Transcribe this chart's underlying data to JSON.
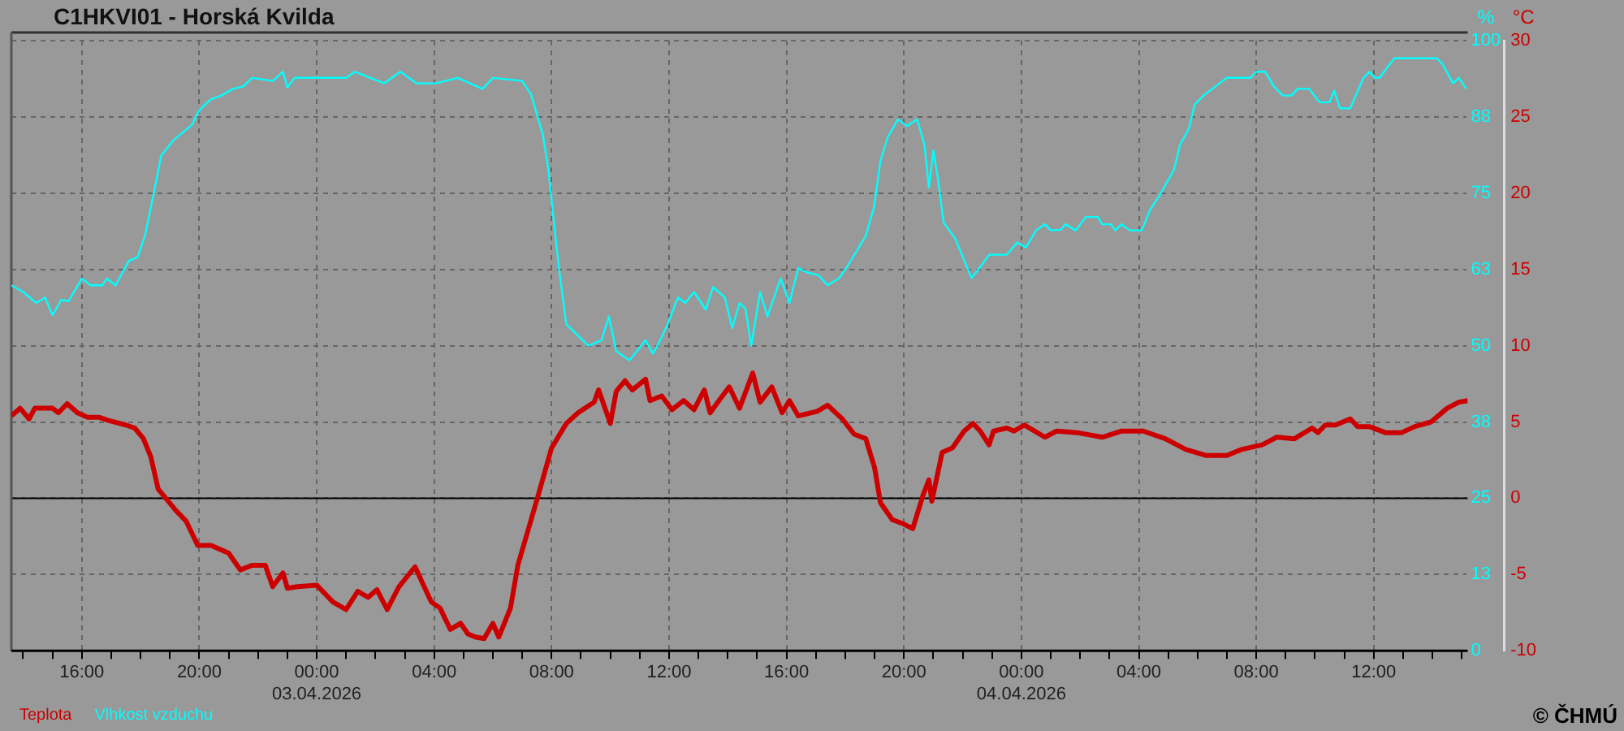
{
  "chart_data": {
    "type": "line",
    "title": "C1HKVI01 - Horská Kvilda",
    "ylabel": "°C",
    "y2label": "%",
    "annotations": [
      "© ČHMÚ"
    ],
    "xlim": [
      "2026-04-02T13:36",
      "2026-04-04T15:12"
    ],
    "xticks": [
      {
        "value": "2026-04-02T14:00",
        "label": null
      },
      {
        "value": "2026-04-02T15:00",
        "label": null
      },
      {
        "value": "2026-04-02T16:00",
        "label": "16:00"
      },
      {
        "value": "2026-04-02T17:00",
        "label": null
      },
      {
        "value": "2026-04-02T18:00",
        "label": null
      },
      {
        "value": "2026-04-02T19:00",
        "label": null
      },
      {
        "value": "2026-04-02T20:00",
        "label": "20:00"
      },
      {
        "value": "2026-04-02T21:00",
        "label": null
      },
      {
        "value": "2026-04-02T22:00",
        "label": null
      },
      {
        "value": "2026-04-02T23:00",
        "label": null
      },
      {
        "value": "2026-04-03T00:00",
        "label": "00:00\n03.04.2026"
      },
      {
        "value": "2026-04-03T01:00",
        "label": null
      },
      {
        "value": "2026-04-03T02:00",
        "label": null
      },
      {
        "value": "2026-04-03T03:00",
        "label": null
      },
      {
        "value": "2026-04-03T04:00",
        "label": "04:00"
      },
      {
        "value": "2026-04-03T05:00",
        "label": null
      },
      {
        "value": "2026-04-03T06:00",
        "label": null
      },
      {
        "value": "2026-04-03T07:00",
        "label": null
      },
      {
        "value": "2026-04-03T08:00",
        "label": "08:00"
      },
      {
        "value": "2026-04-03T09:00",
        "label": null
      },
      {
        "value": "2026-04-03T10:00",
        "label": null
      },
      {
        "value": "2026-04-03T11:00",
        "label": null
      },
      {
        "value": "2026-04-03T12:00",
        "label": "12:00"
      },
      {
        "value": "2026-04-03T13:00",
        "label": null
      },
      {
        "value": "2026-04-03T14:00",
        "label": null
      },
      {
        "value": "2026-04-03T15:00",
        "label": null
      },
      {
        "value": "2026-04-03T16:00",
        "label": "16:00"
      },
      {
        "value": "2026-04-03T17:00",
        "label": null
      },
      {
        "value": "2026-04-03T18:00",
        "label": null
      },
      {
        "value": "2026-04-03T19:00",
        "label": null
      },
      {
        "value": "2026-04-03T20:00",
        "label": "20:00"
      },
      {
        "value": "2026-04-03T21:00",
        "label": null
      },
      {
        "value": "2026-04-03T22:00",
        "label": null
      },
      {
        "value": "2026-04-03T23:00",
        "label": null
      },
      {
        "value": "2026-04-04T00:00",
        "label": "00:00\n04.04.2026"
      },
      {
        "value": "2026-04-04T01:00",
        "label": null
      },
      {
        "value": "2026-04-04T02:00",
        "label": null
      },
      {
        "value": "2026-04-04T03:00",
        "label": null
      },
      {
        "value": "2026-04-04T04:00",
        "label": "04:00"
      },
      {
        "value": "2026-04-04T05:00",
        "label": null
      },
      {
        "value": "2026-04-04T06:00",
        "label": null
      },
      {
        "value": "2026-04-04T07:00",
        "label": null
      },
      {
        "value": "2026-04-04T08:00",
        "label": "08:00"
      },
      {
        "value": "2026-04-04T09:00",
        "label": null
      },
      {
        "value": "2026-04-04T10:00",
        "label": null
      },
      {
        "value": "2026-04-04T11:00",
        "label": null
      },
      {
        "value": "2026-04-04T12:00",
        "label": "12:00"
      },
      {
        "value": "2026-04-04T13:00",
        "label": null
      },
      {
        "value": "2026-04-04T14:00",
        "label": null
      },
      {
        "value": "2026-04-04T15:00",
        "label": null
      }
    ],
    "ylim": [
      -10,
      30
    ],
    "yticks": [
      -10,
      -5,
      0,
      5,
      10,
      15,
      20,
      25,
      30
    ],
    "y2lim": [
      0,
      100
    ],
    "y2ticks": [
      0,
      {
        "value": 12.5,
        "label": "13"
      },
      25,
      {
        "value": 37.5,
        "label": "38"
      },
      50,
      {
        "value": 62.5,
        "label": "63"
      },
      75,
      {
        "value": 87.5,
        "label": "88"
      },
      100
    ],
    "grid": true,
    "legend": "bottom left",
    "marker": "none",
    "ref_lines": [
      {
        "axis": "y",
        "value": 0,
        "color": "#000000"
      }
    ],
    "series": [
      {
        "name": "Teplota",
        "color": "#cc0000",
        "x": [
          "2026-04-02T13:36",
          "2026-04-02T13:54",
          "2026-04-02T14:12",
          "2026-04-02T14:24",
          "2026-04-02T15:00",
          "2026-04-02T15:12",
          "2026-04-02T15:30",
          "2026-04-02T15:51",
          "2026-04-02T16:12",
          "2026-04-02T16:36",
          "2026-04-02T16:54",
          "2026-04-02T17:30",
          "2026-04-02T17:48",
          "2026-04-02T18:06",
          "2026-04-02T18:21",
          "2026-04-02T18:36",
          "2026-04-02T19:12",
          "2026-04-02T19:33",
          "2026-04-02T19:57",
          "2026-04-02T20:24",
          "2026-04-02T21:00",
          "2026-04-02T21:24",
          "2026-04-02T21:48",
          "2026-04-02T22:15",
          "2026-04-02T22:30",
          "2026-04-02T22:51",
          "2026-04-02T23:00",
          "2026-04-02T23:21",
          "2026-04-03T00:00",
          "2026-04-03T00:33",
          "2026-04-03T01:00",
          "2026-04-03T01:24",
          "2026-04-03T01:45",
          "2026-04-03T02:03",
          "2026-04-03T02:24",
          "2026-04-03T02:48",
          "2026-04-03T03:21",
          "2026-04-03T03:54",
          "2026-04-03T04:12",
          "2026-04-03T04:33",
          "2026-04-03T04:54",
          "2026-04-03T05:09",
          "2026-04-03T05:24",
          "2026-04-03T05:42",
          "2026-04-03T06:00",
          "2026-04-03T06:12",
          "2026-04-03T06:36",
          "2026-04-03T06:51",
          "2026-04-03T07:30",
          "2026-04-03T08:00",
          "2026-04-03T08:30",
          "2026-04-03T08:54",
          "2026-04-03T09:27",
          "2026-04-03T09:36",
          "2026-04-03T10:00",
          "2026-04-03T10:12",
          "2026-04-03T10:30",
          "2026-04-03T10:45",
          "2026-04-03T11:12",
          "2026-04-03T11:21",
          "2026-04-03T11:45",
          "2026-04-03T12:06",
          "2026-04-03T12:30",
          "2026-04-03T12:51",
          "2026-04-03T13:12",
          "2026-04-03T13:24",
          "2026-04-03T13:42",
          "2026-04-03T14:03",
          "2026-04-03T14:24",
          "2026-04-03T14:51",
          "2026-04-03T15:06",
          "2026-04-03T15:30",
          "2026-04-03T15:51",
          "2026-04-03T16:06",
          "2026-04-03T16:24",
          "2026-04-03T17:03",
          "2026-04-03T17:24",
          "2026-04-03T17:54",
          "2026-04-03T18:18",
          "2026-04-03T18:42",
          "2026-04-03T19:00",
          "2026-04-03T19:12",
          "2026-04-03T19:36",
          "2026-04-03T20:00",
          "2026-04-03T20:18",
          "2026-04-03T20:39",
          "2026-04-03T20:51",
          "2026-04-03T20:57",
          "2026-04-03T21:18",
          "2026-04-03T21:39",
          "2026-04-03T22:03",
          "2026-04-03T22:21",
          "2026-04-03T22:36",
          "2026-04-03T22:54",
          "2026-04-03T23:03",
          "2026-04-03T23:30",
          "2026-04-03T23:45",
          "2026-04-04T00:06",
          "2026-04-04T00:48",
          "2026-04-04T01:12",
          "2026-04-04T01:54",
          "2026-04-04T02:45",
          "2026-04-04T03:24",
          "2026-04-04T04:09",
          "2026-04-04T04:54",
          "2026-04-04T05:36",
          "2026-04-04T06:18",
          "2026-04-04T07:00",
          "2026-04-04T07:30",
          "2026-04-04T08:12",
          "2026-04-04T08:42",
          "2026-04-04T09:18",
          "2026-04-04T09:54",
          "2026-04-04T10:06",
          "2026-04-04T10:21",
          "2026-04-04T10:42",
          "2026-04-04T11:12",
          "2026-04-04T11:27",
          "2026-04-04T11:51",
          "2026-04-04T12:24",
          "2026-04-04T12:57",
          "2026-04-04T13:24",
          "2026-04-04T13:57",
          "2026-04-04T14:30",
          "2026-04-04T14:54",
          "2026-04-04T15:12"
        ],
        "values": [
          5.4,
          5.9,
          5.2,
          5.9,
          5.9,
          5.6,
          6.2,
          5.6,
          5.3,
          5.3,
          5.1,
          4.8,
          4.6,
          3.9,
          2.7,
          0.6,
          -0.8,
          -1.5,
          -3.1,
          -3.1,
          -3.6,
          -4.7,
          -4.4,
          -4.4,
          -5.8,
          -4.9,
          -5.9,
          -5.8,
          -5.7,
          -6.8,
          -7.3,
          -6.1,
          -6.5,
          -6.0,
          -7.3,
          -5.8,
          -4.5,
          -6.8,
          -7.2,
          -8.6,
          -8.2,
          -8.9,
          -9.1,
          -9.2,
          -8.2,
          -9.1,
          -7.2,
          -4.4,
          -0.1,
          3.3,
          4.9,
          5.6,
          6.3,
          7.1,
          4.9,
          7.0,
          7.7,
          7.1,
          7.8,
          6.4,
          6.7,
          5.8,
          6.4,
          5.8,
          7.1,
          5.6,
          6.4,
          7.3,
          5.9,
          8.2,
          6.3,
          7.3,
          5.6,
          6.4,
          5.4,
          5.7,
          6.1,
          5.2,
          4.2,
          3.9,
          2.0,
          -0.3,
          -1.4,
          -1.7,
          -2.0,
          0.2,
          1.2,
          -0.2,
          3.0,
          3.3,
          4.4,
          4.9,
          4.4,
          3.5,
          4.4,
          4.6,
          4.4,
          4.8,
          4.0,
          4.4,
          4.3,
          4.0,
          4.4,
          4.4,
          3.9,
          3.2,
          2.8,
          2.8,
          3.2,
          3.5,
          4.0,
          3.9,
          4.6,
          4.3,
          4.8,
          4.8,
          5.2,
          4.7,
          4.7,
          4.3,
          4.3,
          4.7,
          5.0,
          5.9,
          6.3,
          6.4
        ]
      },
      {
        "name": "Vlhkost vzduchu",
        "color": "#00ffff",
        "axis": "y2",
        "x": [
          "2026-04-02T13:36",
          "2026-04-02T14:00",
          "2026-04-02T14:27",
          "2026-04-02T14:45",
          "2026-04-02T15:00",
          "2026-04-02T15:18",
          "2026-04-02T15:33",
          "2026-04-02T16:00",
          "2026-04-02T16:18",
          "2026-04-02T16:42",
          "2026-04-02T16:51",
          "2026-04-02T17:09",
          "2026-04-02T17:36",
          "2026-04-02T17:54",
          "2026-04-02T18:09",
          "2026-04-02T18:27",
          "2026-04-02T18:42",
          "2026-04-02T19:06",
          "2026-04-02T19:45",
          "2026-04-02T20:00",
          "2026-04-02T20:24",
          "2026-04-02T20:45",
          "2026-04-02T21:09",
          "2026-04-02T21:30",
          "2026-04-02T21:48",
          "2026-04-02T22:30",
          "2026-04-02T22:51",
          "2026-04-02T23:00",
          "2026-04-02T23:15",
          "2026-04-03T01:00",
          "2026-04-03T01:18",
          "2026-04-03T02:18",
          "2026-04-03T02:51",
          "2026-04-03T03:24",
          "2026-04-03T04:03",
          "2026-04-03T04:48",
          "2026-04-03T05:39",
          "2026-04-03T06:00",
          "2026-04-03T07:00",
          "2026-04-03T07:18",
          "2026-04-03T07:42",
          "2026-04-03T07:54",
          "2026-04-03T08:03",
          "2026-04-03T08:15",
          "2026-04-03T08:30",
          "2026-04-03T08:42",
          "2026-04-03T09:15",
          "2026-04-03T09:42",
          "2026-04-03T09:57",
          "2026-04-03T10:12",
          "2026-04-03T10:39",
          "2026-04-03T11:12",
          "2026-04-03T11:27",
          "2026-04-03T11:39",
          "2026-04-03T11:57",
          "2026-04-03T12:18",
          "2026-04-03T12:33",
          "2026-04-03T12:51",
          "2026-04-03T13:15",
          "2026-04-03T13:30",
          "2026-04-03T13:54",
          "2026-04-03T14:09",
          "2026-04-03T14:24",
          "2026-04-03T14:36",
          "2026-04-03T14:48",
          "2026-04-03T15:06",
          "2026-04-03T15:21",
          "2026-04-03T15:48",
          "2026-04-03T16:06",
          "2026-04-03T16:24",
          "2026-04-03T16:42",
          "2026-04-03T17:06",
          "2026-04-03T17:24",
          "2026-04-03T17:48",
          "2026-04-03T18:09",
          "2026-04-03T18:42",
          "2026-04-03T18:59",
          "2026-04-03T19:12",
          "2026-04-03T19:27",
          "2026-04-03T19:48",
          "2026-04-03T20:06",
          "2026-04-03T20:27",
          "2026-04-03T20:42",
          "2026-04-03T20:51",
          "2026-04-03T21:00",
          "2026-04-03T21:09",
          "2026-04-03T21:21",
          "2026-04-03T21:45",
          "2026-04-03T22:18",
          "2026-04-03T22:36",
          "2026-04-03T22:54",
          "2026-04-03T23:30",
          "2026-04-03T23:51",
          "2026-04-04T00:09",
          "2026-04-04T00:30",
          "2026-04-04T00:48",
          "2026-04-04T01:00",
          "2026-04-04T01:21",
          "2026-04-04T01:30",
          "2026-04-04T01:51",
          "2026-04-04T02:12",
          "2026-04-04T02:36",
          "2026-04-04T02:45",
          "2026-04-04T03:03",
          "2026-04-04T03:12",
          "2026-04-04T03:24",
          "2026-04-04T03:42",
          "2026-04-04T04:06",
          "2026-04-04T04:24",
          "2026-04-04T04:42",
          "2026-04-04T05:12",
          "2026-04-04T05:24",
          "2026-04-04T05:42",
          "2026-04-04T05:54",
          "2026-04-04T06:12",
          "2026-04-04T06:45",
          "2026-04-04T07:00",
          "2026-04-04T07:48",
          "2026-04-04T08:00",
          "2026-04-04T08:18",
          "2026-04-04T08:36",
          "2026-04-04T08:54",
          "2026-04-04T09:12",
          "2026-04-04T09:24",
          "2026-04-04T09:48",
          "2026-04-04T10:09",
          "2026-04-04T10:30",
          "2026-04-04T10:39",
          "2026-04-04T10:51",
          "2026-04-04T11:12",
          "2026-04-04T11:39",
          "2026-04-04T11:51",
          "2026-04-04T12:03",
          "2026-04-04T12:12",
          "2026-04-04T12:42",
          "2026-04-04T14:09",
          "2026-04-04T14:21",
          "2026-04-04T14:42",
          "2026-04-04T14:54",
          "2026-04-04T15:09"
        ],
        "values": [
          59.9,
          58.8,
          57.0,
          57.9,
          55.0,
          57.5,
          57.3,
          61.0,
          59.9,
          59.9,
          61.0,
          59.9,
          63.9,
          64.5,
          68.0,
          75.0,
          81.1,
          83.6,
          86.2,
          88.6,
          90.4,
          91.0,
          92.1,
          92.5,
          93.9,
          93.4,
          94.9,
          92.3,
          93.9,
          93.9,
          94.9,
          93.0,
          94.9,
          93.0,
          93.0,
          93.9,
          92.1,
          93.9,
          93.4,
          91.2,
          84.6,
          78.5,
          71.5,
          62.7,
          53.5,
          52.6,
          50.0,
          50.9,
          54.8,
          49.1,
          47.6,
          50.9,
          48.7,
          50.4,
          53.5,
          57.9,
          57.0,
          58.8,
          55.9,
          59.6,
          57.9,
          52.9,
          57.0,
          56.1,
          50.0,
          58.8,
          54.8,
          61.0,
          57.0,
          62.7,
          62.0,
          61.5,
          59.9,
          61.1,
          63.6,
          68.0,
          72.8,
          80.3,
          84.2,
          87.1,
          86.0,
          87.1,
          82.9,
          75.9,
          82.0,
          77.6,
          70.2,
          67.5,
          61.1,
          62.9,
          64.9,
          64.9,
          66.9,
          66.1,
          68.9,
          69.9,
          68.9,
          69.0,
          69.9,
          68.9,
          71.1,
          71.1,
          69.9,
          69.9,
          68.9,
          69.9,
          68.9,
          68.9,
          72.4,
          74.6,
          78.9,
          82.9,
          85.5,
          89.5,
          91.0,
          93.0,
          93.9,
          93.9,
          94.9,
          94.9,
          92.5,
          91.0,
          91.0,
          92.1,
          92.1,
          89.9,
          89.9,
          91.8,
          88.9,
          88.9,
          93.9,
          94.9,
          93.9,
          93.9,
          97.1,
          97.1,
          96.1,
          93.0,
          93.9,
          92.1
        ]
      }
    ]
  }
}
